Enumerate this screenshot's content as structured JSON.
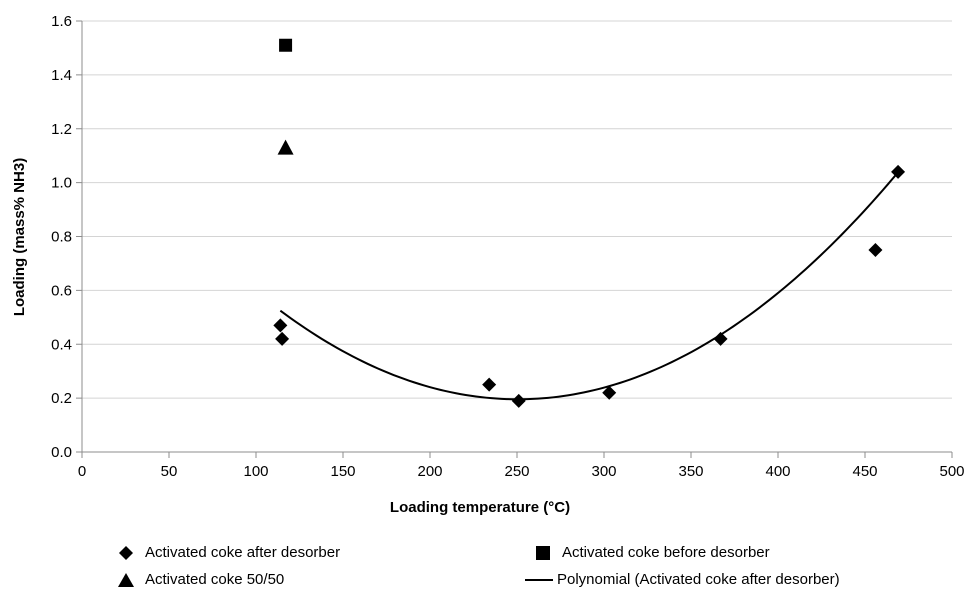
{
  "chart_data": {
    "type": "scatter",
    "xlabel": "Loading temperature (°C)",
    "ylabel": "Loading (mass% NH3)",
    "xlim": [
      0,
      500
    ],
    "ylim": [
      0,
      1.6
    ],
    "x_ticks": [
      0,
      50,
      100,
      150,
      200,
      250,
      300,
      350,
      400,
      450,
      500
    ],
    "y_ticks": [
      0.0,
      0.2,
      0.4,
      0.6,
      0.8,
      1.0,
      1.2,
      1.4,
      1.6
    ],
    "x_tick_labels": [
      "0",
      "50",
      "100",
      "150",
      "200",
      "250",
      "300",
      "350",
      "400",
      "450",
      "500"
    ],
    "y_tick_labels": [
      "0.0",
      "0.2",
      "0.4",
      "0.6",
      "0.8",
      "1.0",
      "1.2",
      "1.4",
      "1.6"
    ],
    "grid": "horizontal",
    "legend_position": "bottom",
    "series": [
      {
        "name": "Activated coke after desorber",
        "marker": "diamond",
        "color": "#000000",
        "points": [
          [
            114,
            0.47
          ],
          [
            115,
            0.42
          ],
          [
            234,
            0.25
          ],
          [
            251,
            0.19
          ],
          [
            303,
            0.22
          ],
          [
            367,
            0.42
          ],
          [
            456,
            0.75
          ],
          [
            469,
            1.04
          ]
        ]
      },
      {
        "name": "Activated coke before desorber",
        "marker": "square",
        "color": "#000000",
        "points": [
          [
            117,
            1.51
          ]
        ]
      },
      {
        "name": "Activated coke 50/50",
        "marker": "triangle",
        "color": "#000000",
        "points": [
          [
            117,
            1.13
          ]
        ]
      }
    ],
    "trendline": {
      "name": "Polynomial (Activated coke after desorber)",
      "type": "polynomial",
      "order": 2,
      "x_range": [
        114,
        469
      ],
      "coefficients": [
        1.3034,
        -0.008843,
        1.765e-05
      ],
      "color": "#000000"
    }
  }
}
